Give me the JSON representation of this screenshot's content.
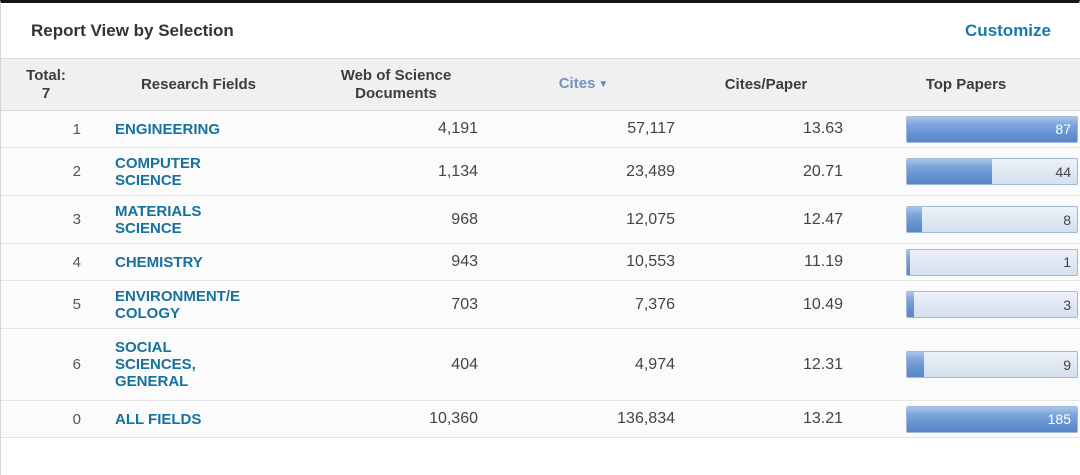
{
  "header": {
    "title": "Report View by Selection",
    "customize_label": "Customize"
  },
  "table": {
    "columns": {
      "total": "Total:\n7",
      "research_fields": "Research Fields",
      "wos_documents": "Web of Science\nDocuments",
      "cites": "Cites",
      "cites_sort_icon": "▼",
      "cites_per_paper": "Cites/Paper",
      "top_papers": "Top Papers"
    },
    "sorted_by": "Cites",
    "rows": [
      {
        "rank": "1",
        "field": "ENGINEERING",
        "documents": "4,191",
        "cites": "57,117",
        "cites_per_paper": "13.63",
        "top_papers": {
          "value": "87",
          "fill_pct": 100,
          "value_color": "#ffffff"
        }
      },
      {
        "rank": "2",
        "field": "COMPUTER\nSCIENCE",
        "documents": "1,134",
        "cites": "23,489",
        "cites_per_paper": "20.71",
        "top_papers": {
          "value": "44",
          "fill_pct": 50,
          "value_color": "#444444"
        }
      },
      {
        "rank": "3",
        "field": "MATERIALS\nSCIENCE",
        "documents": "968",
        "cites": "12,075",
        "cites_per_paper": "12.47",
        "top_papers": {
          "value": "8",
          "fill_pct": 9,
          "value_color": "#444444"
        }
      },
      {
        "rank": "4",
        "field": "CHEMISTRY",
        "documents": "943",
        "cites": "10,553",
        "cites_per_paper": "11.19",
        "top_papers": {
          "value": "1",
          "fill_pct": 2,
          "value_color": "#444444"
        }
      },
      {
        "rank": "5",
        "field": "ENVIRONMENT/E\nCOLOGY",
        "documents": "703",
        "cites": "7,376",
        "cites_per_paper": "10.49",
        "top_papers": {
          "value": "3",
          "fill_pct": 4,
          "value_color": "#444444"
        }
      },
      {
        "rank": "6",
        "field": "SOCIAL\nSCIENCES,\nGENERAL",
        "documents": "404",
        "cites": "4,974",
        "cites_per_paper": "12.31",
        "top_papers": {
          "value": "9",
          "fill_pct": 10,
          "value_color": "#444444"
        }
      },
      {
        "rank": "0",
        "field": "ALL FIELDS",
        "documents": "10,360",
        "cites": "136,834",
        "cites_per_paper": "13.21",
        "top_papers": {
          "value": "185",
          "fill_pct": 100,
          "value_color": "#ffffff"
        }
      }
    ]
  },
  "colors": {
    "field_link": "#17719e",
    "customize_link": "#1779ad",
    "cites_header": "#7392c2",
    "bar_fill": "#6593d2",
    "bar_track": "#dde6f2",
    "header_row_bg": "#f0f0f0"
  }
}
